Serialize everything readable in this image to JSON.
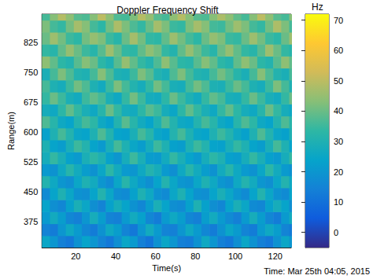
{
  "chart_data": {
    "type": "heatmap",
    "title": "Doppler Frequency Shift",
    "x_label": "Time(s)",
    "y_label": "Range(m)",
    "annotation": "Time: Mar 25th 04:05, 2015",
    "x": [
      5,
      9,
      13,
      17,
      21,
      25,
      29,
      33,
      37,
      41,
      45,
      49,
      53,
      57,
      61,
      65,
      69,
      73,
      77,
      81,
      85,
      89,
      93,
      97,
      101,
      105,
      109,
      113,
      117,
      121,
      125,
      129
    ],
    "y": [
      325,
      355,
      385,
      415,
      445,
      475,
      505,
      535,
      565,
      595,
      625,
      655,
      685,
      715,
      745,
      775,
      805,
      835,
      865,
      895
    ],
    "values": [
      [
        25,
        20,
        14,
        12,
        19,
        24,
        20,
        15,
        12,
        18,
        25,
        21,
        14,
        11,
        19,
        25,
        20,
        14,
        13,
        19,
        26,
        20,
        14,
        12,
        18,
        25,
        19,
        14,
        12,
        19,
        25,
        20
      ],
      [
        15,
        13,
        20,
        26,
        21,
        16,
        13,
        19,
        26,
        22,
        15,
        12,
        20,
        27,
        21,
        15,
        14,
        20,
        26,
        21,
        16,
        13,
        19,
        25,
        21,
        15,
        13,
        21,
        26,
        22,
        15,
        13
      ],
      [
        21,
        27,
        22,
        16,
        14,
        20,
        28,
        22,
        15,
        14,
        21,
        27,
        23,
        16,
        13,
        21,
        26,
        22,
        16,
        14,
        22,
        27,
        21,
        17,
        14,
        21,
        28,
        22,
        16,
        13,
        21,
        27
      ],
      [
        24,
        18,
        16,
        23,
        29,
        25,
        18,
        15,
        23,
        28,
        24,
        19,
        16,
        22,
        29,
        24,
        18,
        17,
        23,
        30,
        23,
        18,
        16,
        24,
        29,
        25,
        17,
        16,
        23,
        28,
        24,
        18
      ],
      [
        17,
        24,
        30,
        25,
        19,
        18,
        24,
        31,
        25,
        18,
        17,
        23,
        30,
        26,
        19,
        17,
        25,
        30,
        24,
        19,
        18,
        24,
        29,
        25,
        20,
        17,
        24,
        31,
        25,
        19,
        17,
        24
      ],
      [
        31,
        26,
        20,
        18,
        25,
        30,
        27,
        20,
        17,
        25,
        32,
        26,
        21,
        18,
        24,
        31,
        25,
        20,
        19,
        25,
        30,
        26,
        20,
        18,
        26,
        31,
        27,
        20,
        18,
        25,
        31,
        26
      ],
      [
        21,
        19,
        26,
        32,
        27,
        22,
        19,
        25,
        33,
        27,
        21,
        20,
        26,
        31,
        28,
        21,
        18,
        26,
        32,
        27,
        22,
        19,
        27,
        32,
        26,
        21,
        19,
        25,
        33,
        27,
        21,
        19
      ],
      [
        28,
        34,
        29,
        23,
        21,
        29,
        33,
        30,
        23,
        20,
        28,
        35,
        29,
        22,
        21,
        27,
        34,
        29,
        24,
        21,
        28,
        33,
        30,
        23,
        22,
        28,
        34,
        29,
        23,
        21,
        28,
        34
      ],
      [
        30,
        24,
        22,
        29,
        35,
        31,
        24,
        21,
        29,
        36,
        30,
        25,
        22,
        28,
        35,
        30,
        23,
        22,
        30,
        35,
        31,
        24,
        23,
        29,
        34,
        30,
        24,
        22,
        29,
        36,
        30,
        24
      ],
      [
        23,
        30,
        36,
        31,
        25,
        24,
        30,
        37,
        31,
        24,
        23,
        29,
        36,
        32,
        25,
        23,
        31,
        36,
        30,
        25,
        24,
        30,
        35,
        31,
        26,
        23,
        30,
        37,
        31,
        25,
        23,
        30
      ],
      [
        37,
        32,
        26,
        24,
        31,
        36,
        33,
        26,
        23,
        31,
        38,
        32,
        27,
        24,
        30,
        37,
        31,
        26,
        25,
        31,
        36,
        32,
        26,
        24,
        32,
        37,
        33,
        26,
        24,
        31,
        37,
        32
      ],
      [
        28,
        26,
        33,
        39,
        34,
        29,
        26,
        32,
        40,
        34,
        28,
        27,
        33,
        38,
        35,
        28,
        25,
        33,
        39,
        34,
        29,
        26,
        34,
        39,
        33,
        28,
        26,
        32,
        40,
        34,
        28,
        26
      ],
      [
        34,
        40,
        35,
        29,
        27,
        35,
        39,
        36,
        29,
        26,
        34,
        41,
        35,
        28,
        27,
        33,
        40,
        35,
        30,
        27,
        34,
        39,
        36,
        29,
        28,
        34,
        40,
        35,
        29,
        27,
        34,
        40
      ],
      [
        36,
        30,
        28,
        35,
        41,
        37,
        30,
        27,
        35,
        42,
        36,
        31,
        28,
        34,
        41,
        36,
        29,
        28,
        36,
        41,
        37,
        30,
        29,
        35,
        40,
        36,
        30,
        28,
        35,
        42,
        36,
        30
      ],
      [
        29,
        36,
        42,
        37,
        31,
        30,
        36,
        43,
        37,
        30,
        29,
        35,
        42,
        38,
        31,
        29,
        37,
        42,
        36,
        31,
        30,
        36,
        41,
        37,
        32,
        29,
        36,
        43,
        37,
        31,
        29,
        36
      ],
      [
        44,
        39,
        33,
        31,
        38,
        43,
        40,
        33,
        30,
        38,
        45,
        39,
        34,
        31,
        37,
        44,
        38,
        33,
        32,
        38,
        43,
        39,
        33,
        31,
        39,
        44,
        40,
        33,
        31,
        38,
        44,
        39
      ],
      [
        34,
        32,
        39,
        45,
        40,
        35,
        32,
        38,
        46,
        40,
        34,
        33,
        39,
        44,
        41,
        34,
        31,
        39,
        45,
        40,
        35,
        32,
        40,
        45,
        39,
        34,
        32,
        38,
        46,
        40,
        34,
        32
      ],
      [
        40,
        46,
        41,
        35,
        33,
        41,
        45,
        42,
        35,
        32,
        40,
        47,
        41,
        34,
        33,
        39,
        46,
        41,
        36,
        33,
        40,
        45,
        42,
        35,
        34,
        40,
        46,
        41,
        35,
        33,
        40,
        46
      ],
      [
        42,
        36,
        34,
        41,
        47,
        43,
        36,
        33,
        41,
        48,
        42,
        37,
        34,
        40,
        47,
        42,
        35,
        34,
        42,
        47,
        43,
        36,
        35,
        41,
        46,
        42,
        36,
        34,
        41,
        48,
        42,
        36
      ],
      [
        36,
        43,
        49,
        44,
        38,
        37,
        43,
        50,
        44,
        37,
        36,
        42,
        49,
        45,
        38,
        36,
        44,
        49,
        43,
        38,
        37,
        43,
        48,
        44,
        39,
        36,
        43,
        50,
        44,
        38,
        36,
        43
      ]
    ],
    "xlim": [
      3,
      128
    ],
    "ylim": [
      310,
      895
    ],
    "xticks": [
      20,
      40,
      60,
      80,
      100,
      120
    ],
    "yticks": [
      375,
      450,
      525,
      600,
      675,
      750,
      825
    ],
    "colorbar": {
      "label": "Hz",
      "range": [
        -5,
        72
      ],
      "ticks": [
        0,
        10,
        20,
        30,
        40,
        50,
        60,
        70
      ]
    }
  }
}
